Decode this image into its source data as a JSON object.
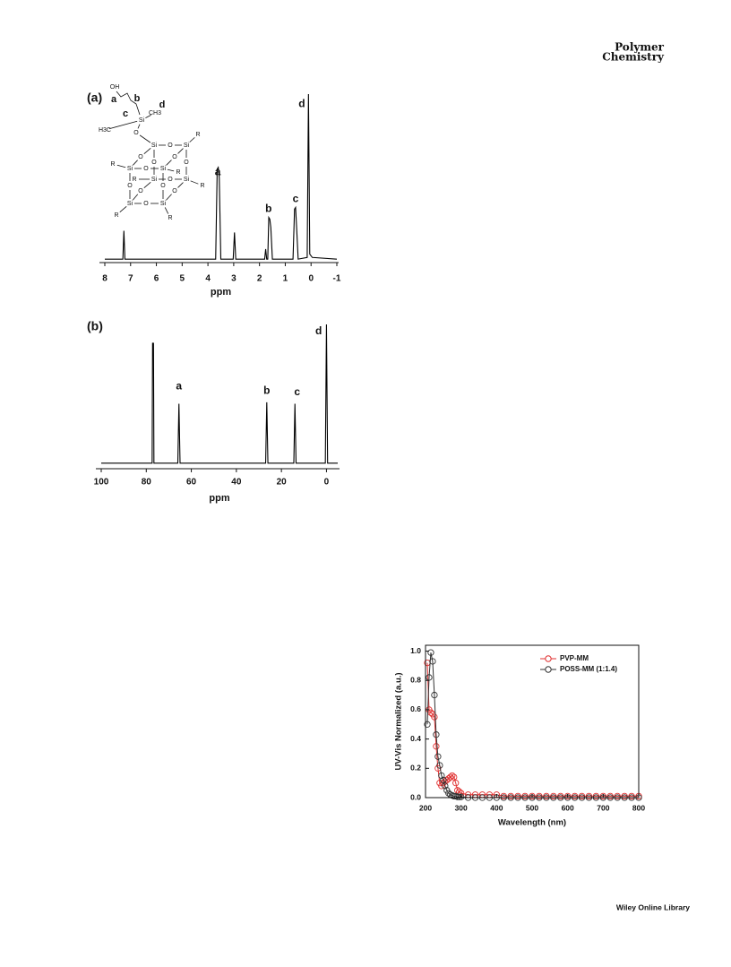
{
  "header": {
    "line1": "Polymer",
    "line2": "Chemistry"
  },
  "footer": {
    "text": "Wiley Online Library"
  },
  "structure": {
    "labels": [
      "OH",
      "a",
      "b",
      "c",
      "d",
      "Si",
      "CH3",
      "H3C",
      "O",
      "Si",
      "Si",
      "Si",
      "Si",
      "Si",
      "Si",
      "Si",
      "Si",
      "O",
      "O",
      "O",
      "O",
      "O",
      "O",
      "O",
      "O",
      "O",
      "O",
      "O",
      "O",
      "R",
      "R",
      "R",
      "R",
      "R",
      "R",
      "R"
    ]
  },
  "chart_data": [
    {
      "type": "line",
      "panel_label": "(a)",
      "xlabel": "ppm",
      "color": "#000000",
      "x": [
        8,
        7.3,
        7.26,
        7.22,
        3.7,
        3.64,
        3.6,
        3.56,
        3.5,
        3.02,
        2.97,
        2.92,
        1.8,
        1.76,
        1.72,
        1.68,
        1.64,
        1.6,
        1.56,
        1.5,
        0.7,
        0.64,
        0.6,
        0.56,
        0.5,
        0.15,
        0.1,
        0.05,
        -0.05,
        -1
      ],
      "values": [
        1,
        1,
        18,
        1,
        1,
        55,
        56,
        50,
        1,
        1,
        17,
        1,
        1,
        7,
        1,
        1,
        26,
        25,
        20,
        1,
        1,
        31,
        32,
        20,
        1,
        2,
        100,
        4,
        2,
        1
      ],
      "xlim": [
        8,
        -1
      ],
      "xticks": [
        8,
        7,
        6,
        5,
        4,
        3,
        2,
        1,
        0,
        -1
      ],
      "ylim": [
        0,
        100
      ],
      "annotations": [
        {
          "text": "a",
          "x": 3.62,
          "y": 53
        },
        {
          "text": "b",
          "x": 1.65,
          "y": 31
        },
        {
          "text": "c",
          "x": 0.6,
          "y": 37
        },
        {
          "text": "d",
          "x": 0.36,
          "y": 94
        }
      ]
    },
    {
      "type": "line",
      "panel_label": "(b)",
      "xlabel": "ppm",
      "color": "#000000",
      "x": [
        100,
        77.4,
        77.2,
        77.0,
        76.8,
        76.6,
        66,
        65.5,
        65,
        27,
        26.5,
        26,
        14.5,
        14,
        13.5,
        0.5,
        0,
        -0.5,
        -5
      ],
      "values": [
        2,
        2,
        87,
        86,
        87,
        2,
        2,
        44,
        2,
        2,
        45,
        2,
        2,
        44,
        2,
        2,
        100,
        2,
        2
      ],
      "xlim": [
        100,
        -5
      ],
      "xticks": [
        100,
        80,
        60,
        40,
        20,
        0
      ],
      "ylim": [
        0,
        100
      ],
      "annotations": [
        {
          "text": "a",
          "x": 65.5,
          "y": 56
        },
        {
          "text": "b",
          "x": 26.5,
          "y": 53
        },
        {
          "text": "c",
          "x": 13,
          "y": 52
        },
        {
          "text": "d",
          "x": 3.5,
          "y": 95
        }
      ]
    },
    {
      "type": "line",
      "marker": "o",
      "xlabel": "Wavelength (nm)",
      "ylabel": "UV-Vis Normalized (a.u.)",
      "x": [
        205,
        210,
        215,
        220,
        225,
        230,
        235,
        240,
        245,
        250,
        255,
        260,
        265,
        270,
        275,
        280,
        285,
        290,
        295,
        300,
        320,
        340,
        360,
        380,
        400,
        420,
        440,
        460,
        480,
        500,
        520,
        540,
        560,
        580,
        600,
        620,
        640,
        660,
        680,
        700,
        720,
        740,
        760,
        780,
        800
      ],
      "series": [
        {
          "name": "PVP-MM",
          "color": "#e03030",
          "values": [
            0.92,
            0.6,
            0.58,
            0.57,
            0.55,
            0.35,
            0.2,
            0.1,
            0.08,
            0.1,
            0.11,
            0.12,
            0.13,
            0.14,
            0.15,
            0.14,
            0.1,
            0.05,
            0.04,
            0.03,
            0.02,
            0.02,
            0.02,
            0.02,
            0.02,
            0.01,
            0.01,
            0.01,
            0.01,
            0.01,
            0.01,
            0.01,
            0.01,
            0.01,
            0.01,
            0.01,
            0.01,
            0.01,
            0.01,
            0.01,
            0.01,
            0.01,
            0.01,
            0.01,
            0.01
          ]
        },
        {
          "name": "POSS-MM (1:1.4)",
          "color": "#333333",
          "values": [
            0.5,
            0.82,
            0.99,
            0.93,
            0.7,
            0.43,
            0.28,
            0.22,
            0.15,
            0.12,
            0.08,
            0.05,
            0.03,
            0.02,
            0.015,
            0.01,
            0.01,
            0.005,
            0.005,
            0.005,
            0,
            0,
            0,
            0,
            0,
            0,
            0,
            0,
            0,
            0,
            0,
            0,
            0,
            0,
            0,
            0,
            0,
            0,
            0,
            0,
            0,
            0,
            0,
            0,
            0
          ]
        }
      ],
      "xlim": [
        200,
        800
      ],
      "xticks": [
        200,
        300,
        400,
        500,
        600,
        700,
        800
      ],
      "ylim": [
        0,
        1.04
      ],
      "yticks": [
        {
          "value": 0,
          "label": "0.0"
        },
        0.2,
        0.4,
        0.6,
        0.8,
        {
          "value": 1,
          "label": "1.0"
        }
      ],
      "legend": "upper right"
    }
  ]
}
